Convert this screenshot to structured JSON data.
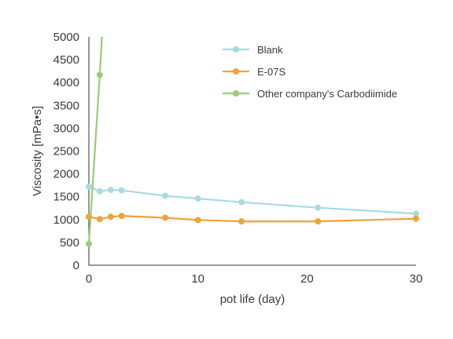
{
  "chart_data": {
    "type": "line",
    "xlabel": "pot life (day)",
    "ylabel": "Viscosity [mPa•s]",
    "xlim": [
      0,
      30
    ],
    "ylim": [
      0,
      5000
    ],
    "xticks": [
      0,
      10,
      20,
      30
    ],
    "yticks": [
      0,
      500,
      1000,
      1500,
      2000,
      2500,
      3000,
      3500,
      4000,
      4500,
      5000
    ],
    "grid": false,
    "legend_position": "top-right",
    "series": [
      {
        "name": "Blank",
        "color": "#a9dbe0",
        "x": [
          0,
          1,
          2,
          3,
          7,
          10,
          14,
          21,
          30
        ],
        "y": [
          1720,
          1620,
          1650,
          1640,
          1520,
          1460,
          1380,
          1260,
          1130
        ]
      },
      {
        "name": "E-07S",
        "color": "#f0a337",
        "x": [
          0,
          1,
          2,
          3,
          7,
          10,
          14,
          21,
          30
        ],
        "y": [
          1060,
          1010,
          1060,
          1080,
          1040,
          990,
          960,
          960,
          1020
        ]
      },
      {
        "name": "Other company's Carbodiimide",
        "color": "#9ccb78",
        "x": [
          0,
          1,
          1.2
        ],
        "y": [
          470,
          4170,
          5000
        ],
        "markers": [
          true,
          true,
          false
        ]
      }
    ]
  }
}
